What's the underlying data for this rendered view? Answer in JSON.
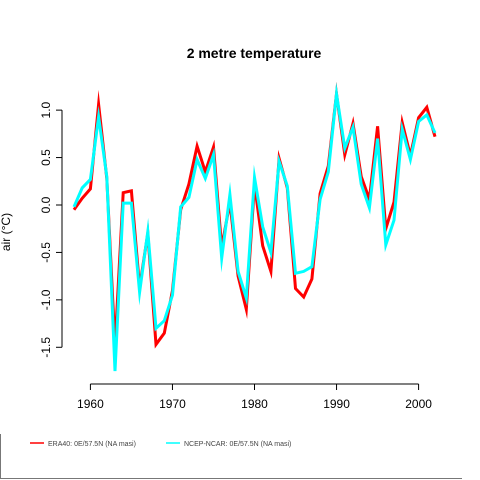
{
  "chart_data": {
    "type": "line",
    "title": "2 metre temperature",
    "xlabel": "",
    "ylabel": "air  (°C)",
    "xlim": [
      1958,
      2002
    ],
    "ylim": [
      -1.75,
      1.17
    ],
    "xticks": [
      1960,
      1970,
      1980,
      1990,
      2000
    ],
    "xtick_labels": [
      "1960",
      "1970",
      "1980",
      "1990",
      "2000"
    ],
    "yticks": [
      -1.5,
      -1.0,
      -0.5,
      0.0,
      0.5,
      1.0
    ],
    "ytick_labels": [
      "-1.5",
      "-1.0",
      "-0.5",
      "0.0",
      "0.5",
      "1.0"
    ],
    "grid": false,
    "legend_position": "bottom-left",
    "x": [
      1958,
      1959,
      1960,
      1961,
      1962,
      1963,
      1964,
      1965,
      1966,
      1967,
      1968,
      1969,
      1970,
      1971,
      1972,
      1973,
      1974,
      1975,
      1976,
      1977,
      1978,
      1979,
      1980,
      1981,
      1982,
      1983,
      1984,
      1985,
      1986,
      1987,
      1988,
      1989,
      1990,
      1991,
      1992,
      1993,
      1994,
      1995,
      1996,
      1997,
      1998,
      1999,
      2000,
      2001,
      2002
    ],
    "series": [
      {
        "name": "ERA40: 0E/57.5N (NA masi)",
        "color": "#ff0000",
        "values": [
          -0.05,
          0.07,
          0.17,
          1.06,
          0.28,
          -1.49,
          0.13,
          0.15,
          -0.87,
          -0.3,
          -1.47,
          -1.35,
          -0.9,
          -0.05,
          0.22,
          0.62,
          0.35,
          0.61,
          -0.45,
          0.03,
          -0.75,
          -1.1,
          0.22,
          -0.43,
          -0.7,
          0.49,
          0.18,
          -0.88,
          -0.97,
          -0.78,
          0.12,
          0.41,
          1.17,
          0.53,
          0.86,
          0.3,
          0.06,
          0.83,
          -0.25,
          0.03,
          0.87,
          0.52,
          0.92,
          1.03,
          0.72
        ]
      },
      {
        "name": "NCEP-NCAR: 0E/57.5N (NA masi)",
        "color": "#00ffff",
        "values": [
          -0.02,
          0.18,
          0.27,
          0.93,
          0.3,
          -1.75,
          0.02,
          0.02,
          -0.92,
          -0.28,
          -1.3,
          -1.22,
          -0.95,
          -0.02,
          0.08,
          0.48,
          0.28,
          0.53,
          -0.56,
          0.11,
          -0.7,
          -0.98,
          0.29,
          -0.23,
          -0.5,
          0.46,
          0.2,
          -0.72,
          -0.7,
          -0.65,
          0.06,
          0.35,
          1.17,
          0.6,
          0.82,
          0.22,
          -0.03,
          0.7,
          -0.42,
          -0.16,
          0.8,
          0.48,
          0.88,
          0.95,
          0.76
        ]
      }
    ]
  }
}
